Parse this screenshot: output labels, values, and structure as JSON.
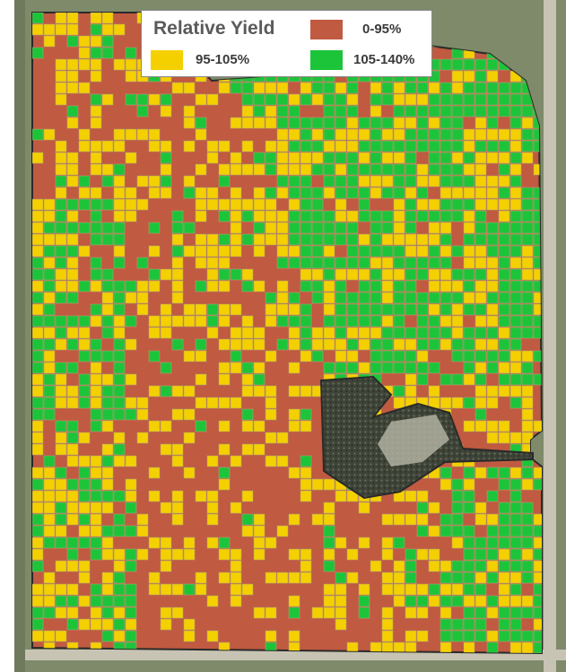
{
  "legend": {
    "title": "Relative Yield",
    "classes": [
      {
        "id": "low",
        "label": "0-95%",
        "color": "#c05a40"
      },
      {
        "id": "mid",
        "label": "95-105%",
        "color": "#f5d000"
      },
      {
        "id": "high",
        "label": "105-140%",
        "color": "#1cc43a"
      }
    ]
  },
  "colors": {
    "background": "#7e8a6a",
    "road": "#c8c4b4",
    "field_outline": "#2a2a2a",
    "farmstead": "#3e4438",
    "cell_border": "#b0a070"
  }
}
